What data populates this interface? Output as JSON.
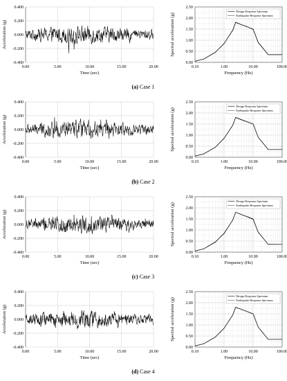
{
  "chart_data": [
    {
      "type": "line",
      "panel": "a",
      "title": "",
      "xlabel": "Time (sec)",
      "ylabel": "Acceleration (g)",
      "xlim": [
        0,
        20
      ],
      "ylim": [
        -0.4,
        0.4
      ],
      "xticks": [
        "0.00",
        "5.00",
        "10.00",
        "15.00",
        "20.00"
      ],
      "yticks": [
        "0.400",
        "0.200",
        "0.000",
        "-0.200",
        "-0.400"
      ],
      "series": [
        {
          "x_range": [
            0,
            20
          ],
          "approx_peak_abs": 0.3,
          "note_values": [
            0.3,
            -0.29,
            0.25,
            -0.22
          ]
        }
      ],
      "grid": true
    },
    {
      "type": "line",
      "panel": "a",
      "xlabel": "Frequency (Hz)",
      "ylabel": "Spectral acceleration (g)",
      "xscale": "log",
      "xlim": [
        0.1,
        100
      ],
      "ylim": [
        0,
        2.5
      ],
      "xticks": [
        "0.10",
        "1.00",
        "10.00",
        "100.00"
      ],
      "yticks": [
        "2.50",
        "2.00",
        "1.50",
        "1.00",
        "0.50",
        "0.00"
      ],
      "legend": [
        "Design Response Spectrum",
        "Earthquake Response Spectrum"
      ],
      "legend_position": "top-right",
      "series": [
        {
          "name": "Design Response Spectrum",
          "x": [
            0.1,
            0.2,
            0.5,
            1.0,
            2.0,
            2.5,
            10.0,
            15.0,
            33.0,
            100.0
          ],
          "y": [
            0.05,
            0.15,
            0.45,
            0.85,
            1.45,
            1.8,
            1.5,
            0.9,
            0.35,
            0.35
          ]
        },
        {
          "name": "Earthquake Response Spectrum",
          "x": [
            0.1,
            0.2,
            0.5,
            1.0,
            2.0,
            2.5,
            4.0,
            6.0,
            10.0,
            15.0,
            33.0,
            100.0
          ],
          "y": [
            0.05,
            0.15,
            0.46,
            0.84,
            1.47,
            1.82,
            1.7,
            1.62,
            1.48,
            0.88,
            0.34,
            0.34
          ]
        }
      ],
      "grid": true
    },
    {
      "type": "line",
      "panel": "b",
      "xlabel": "Time (sec)",
      "ylabel": "Acceleration (g)",
      "xlim": [
        0,
        20
      ],
      "ylim": [
        -0.4,
        0.4
      ],
      "xticks": [
        "0.00",
        "5.00",
        "10.00",
        "15.00",
        "20.00"
      ],
      "yticks": [
        "0.400",
        "0.200",
        "0.000",
        "-0.200",
        "-0.400"
      ],
      "series": [
        {
          "x_range": [
            0,
            20
          ],
          "approx_peak_abs": 0.28
        }
      ],
      "grid": true
    },
    {
      "type": "line",
      "panel": "b",
      "xlabel": "Frequency (Hz)",
      "ylabel": "Spectral acceleration (g)",
      "xscale": "log",
      "xlim": [
        0.1,
        100
      ],
      "ylim": [
        0,
        2.5
      ],
      "xticks": [
        "0.10",
        "1.00",
        "10.00",
        "100.00"
      ],
      "yticks": [
        "2.50",
        "2.00",
        "1.50",
        "1.00",
        "0.50",
        "0.00"
      ],
      "legend": [
        "Design Response Spectrum",
        "Earthquake Response Spectrum"
      ],
      "series": [
        {
          "name": "Design Response Spectrum",
          "x": [
            0.1,
            0.2,
            0.5,
            1.0,
            2.0,
            2.5,
            10.0,
            15.0,
            33.0,
            100.0
          ],
          "y": [
            0.05,
            0.15,
            0.45,
            0.85,
            1.45,
            1.8,
            1.5,
            0.9,
            0.35,
            0.35
          ]
        },
        {
          "name": "Earthquake Response Spectrum",
          "x": [
            0.1,
            0.2,
            0.5,
            1.0,
            2.0,
            2.5,
            4.0,
            6.0,
            10.0,
            15.0,
            33.0,
            100.0
          ],
          "y": [
            0.05,
            0.16,
            0.45,
            0.86,
            1.44,
            1.79,
            1.68,
            1.6,
            1.5,
            0.9,
            0.35,
            0.35
          ]
        }
      ],
      "grid": true
    },
    {
      "type": "line",
      "panel": "c",
      "xlabel": "Time (sec)",
      "ylabel": "Acceleration (g)",
      "xlim": [
        0,
        20
      ],
      "ylim": [
        -0.4,
        0.4
      ],
      "xticks": [
        "0.00",
        "5.00",
        "10.00",
        "15.00",
        "20.00"
      ],
      "yticks": [
        "0.400",
        "0.200",
        "0.000",
        "-0.200",
        "-0.400"
      ],
      "series": [
        {
          "x_range": [
            0,
            20
          ],
          "approx_peak_abs": 0.3
        }
      ],
      "grid": true
    },
    {
      "type": "line",
      "panel": "c",
      "xlabel": "Frequency (Hz)",
      "ylabel": "Spectral acceleration (g)",
      "xscale": "log",
      "xlim": [
        0.1,
        100
      ],
      "ylim": [
        0,
        2.5
      ],
      "xticks": [
        "0.10",
        "1.00",
        "10.00",
        "100.00"
      ],
      "yticks": [
        "2.50",
        "2.00",
        "1.50",
        "1.00",
        "0.50",
        "0.00"
      ],
      "legend": [
        "Design Response Spectrum",
        "Earthquake Response Spectrum"
      ],
      "series": [
        {
          "name": "Design Response Spectrum",
          "x": [
            0.1,
            0.2,
            0.5,
            1.0,
            2.0,
            2.5,
            10.0,
            15.0,
            33.0,
            100.0
          ],
          "y": [
            0.05,
            0.15,
            0.45,
            0.85,
            1.45,
            1.8,
            1.5,
            0.9,
            0.35,
            0.35
          ]
        },
        {
          "name": "Earthquake Response Spectrum",
          "x": [
            0.1,
            0.2,
            0.5,
            1.0,
            2.0,
            2.5,
            4.0,
            6.0,
            10.0,
            15.0,
            33.0,
            100.0
          ],
          "y": [
            0.05,
            0.15,
            0.47,
            0.83,
            1.46,
            1.8,
            1.69,
            1.6,
            1.47,
            0.89,
            0.36,
            0.35
          ]
        }
      ],
      "grid": true
    },
    {
      "type": "line",
      "panel": "d",
      "xlabel": "Time (sec)",
      "ylabel": "Acceleration (g)",
      "xlim": [
        0,
        20
      ],
      "ylim": [
        -0.4,
        0.4
      ],
      "xticks": [
        "0.00",
        "5.00",
        "10.00",
        "15.00",
        "20.00"
      ],
      "yticks": [
        "0.400",
        "0.200",
        "0.000",
        "-0.200",
        "-0.400"
      ],
      "series": [
        {
          "x_range": [
            0,
            20
          ],
          "approx_peak_abs": 0.29
        }
      ],
      "grid": true
    },
    {
      "type": "line",
      "panel": "d",
      "xlabel": "Frequency (Hz)",
      "ylabel": "Spectral acceleration (g)",
      "xscale": "log",
      "xlim": [
        0.1,
        100
      ],
      "ylim": [
        0,
        2.5
      ],
      "xticks": [
        "0.10",
        "1.00",
        "10.00",
        "100.00"
      ],
      "yticks": [
        "2.50",
        "2.00",
        "1.50",
        "1.00",
        "0.50",
        "0.00"
      ],
      "legend": [
        "Design Response Spectrum",
        "Earthquake Response Spectrum"
      ],
      "series": [
        {
          "name": "Design Response Spectrum",
          "x": [
            0.1,
            0.2,
            0.5,
            1.0,
            2.0,
            2.5,
            10.0,
            15.0,
            33.0,
            100.0
          ],
          "y": [
            0.05,
            0.15,
            0.45,
            0.85,
            1.45,
            1.8,
            1.5,
            0.9,
            0.35,
            0.35
          ]
        },
        {
          "name": "Earthquake Response Spectrum",
          "x": [
            0.1,
            0.2,
            0.5,
            1.0,
            2.0,
            2.5,
            4.0,
            6.0,
            10.0,
            15.0,
            33.0,
            100.0
          ],
          "y": [
            0.05,
            0.15,
            0.45,
            0.85,
            1.45,
            1.78,
            1.7,
            1.61,
            1.49,
            0.9,
            0.35,
            0.35
          ]
        }
      ],
      "grid": true
    }
  ],
  "captions": [
    {
      "letter": "(a)",
      "text": "Case 1"
    },
    {
      "letter": "(b)",
      "text": "Case 2"
    },
    {
      "letter": "(c)",
      "text": "Case 3"
    },
    {
      "letter": "(d)",
      "text": "Case 4"
    }
  ],
  "colors": {
    "line": "#000000",
    "grid": "#c8c8c8",
    "axis": "#555555"
  }
}
